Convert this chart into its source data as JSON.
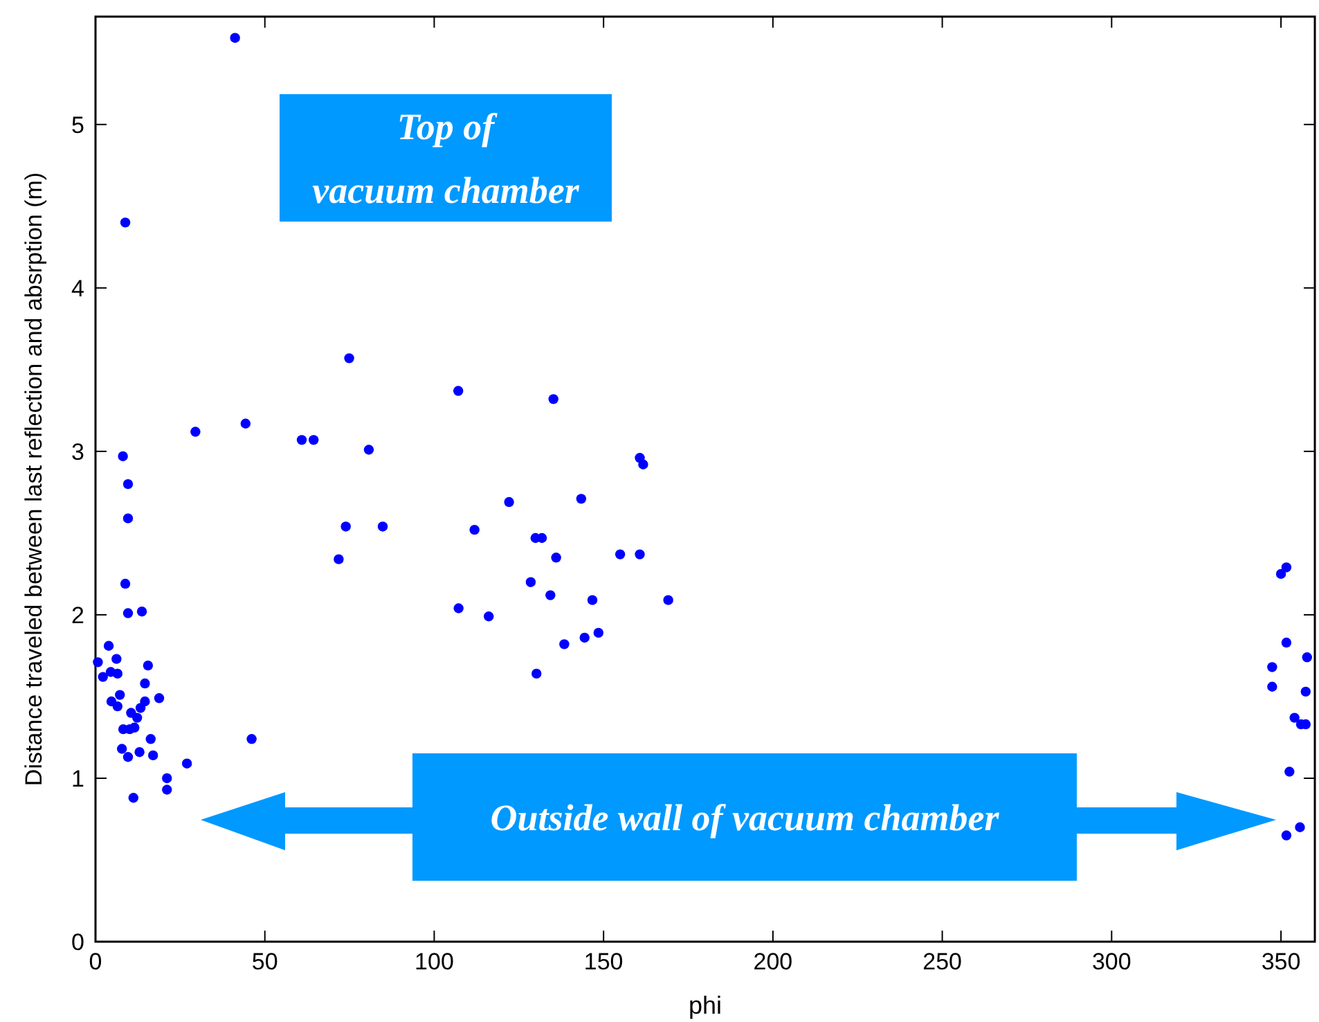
{
  "chart_data": {
    "type": "scatter",
    "xlabel": "phi",
    "ylabel": "Distance traveled between last reflection and absrption (m)",
    "xlim": [
      0,
      360
    ],
    "ylim": [
      0,
      5.66
    ],
    "xticks": [
      0,
      50,
      100,
      150,
      200,
      250,
      300,
      350
    ],
    "yticks": [
      0,
      1,
      2,
      3,
      4,
      5
    ],
    "grid": false,
    "marker": "circle",
    "annotations": [
      "Top of\nvacuum chamber",
      "Outside wall of vacuum chamber"
    ],
    "series": [
      {
        "color": "#0000ff",
        "x": [
          8.8,
          9.6,
          13.7,
          3.9,
          0.7,
          6.2,
          15.5,
          2.2,
          4.5,
          6.5,
          14.6,
          7.2,
          4.7,
          6.5,
          18.8,
          14.6,
          13.3,
          10.5,
          12.3,
          8.2,
          11.5,
          10.1,
          16.3,
          46.1,
          7.8,
          9.6,
          13.0,
          17.0,
          27.0,
          21.1,
          21.1,
          11.2,
          41.2,
          8.8,
          74.9,
          107.1,
          29.5,
          44.3,
          60.9,
          64.4,
          8.1,
          80.7,
          9.6,
          9.6,
          73.9,
          84.8,
          111.9,
          71.8,
          135.2,
          160.7,
          161.7,
          122.1,
          143.4,
          129.9,
          131.8,
          136,
          154.9,
          160.7,
          128.5,
          134.3,
          146.7,
          169.1,
          107.2,
          116.1,
          138.4,
          144.4,
          148.5,
          130.2,
          351.6,
          350,
          351.6,
          357.7,
          347.4,
          347.4,
          357.3,
          354,
          355.9,
          357.3,
          352.5,
          355.6,
          351.6
        ],
        "values": [
          2.19,
          2.01,
          2.02,
          1.81,
          1.71,
          1.73,
          1.69,
          1.62,
          1.65,
          1.64,
          1.58,
          1.51,
          1.47,
          1.44,
          1.49,
          1.47,
          1.43,
          1.4,
          1.37,
          1.3,
          1.31,
          1.3,
          1.24,
          1.24,
          1.18,
          1.13,
          1.16,
          1.14,
          1.09,
          1.0,
          0.93,
          0.88,
          5.53,
          4.4,
          3.57,
          3.37,
          3.12,
          3.17,
          3.07,
          3.07,
          2.97,
          3.01,
          2.8,
          2.59,
          2.54,
          2.54,
          2.52,
          2.34,
          3.32,
          2.96,
          2.92,
          2.69,
          2.71,
          2.47,
          2.47,
          2.35,
          2.37,
          2.37,
          2.2,
          2.12,
          2.09,
          2.09,
          2.04,
          1.99,
          1.82,
          1.86,
          1.89,
          1.64,
          2.29,
          2.25,
          1.83,
          1.74,
          1.68,
          1.56,
          1.53,
          1.37,
          1.33,
          1.33,
          1.04,
          0.7,
          0.65
        ]
      }
    ]
  }
}
